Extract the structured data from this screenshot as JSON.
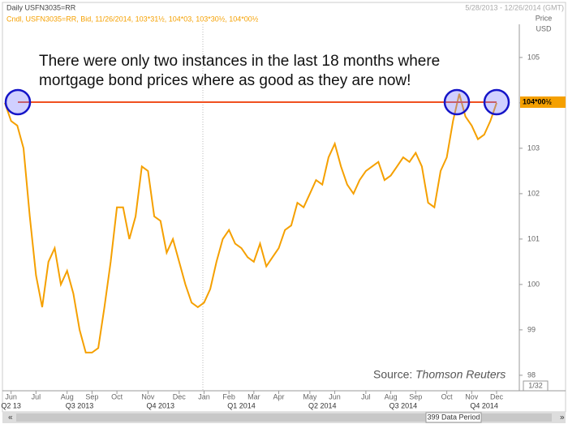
{
  "chart_data": {
    "type": "line",
    "title": "Daily USFN3035=RR",
    "date_range": "5/28/2013 - 12/26/2014 (GMT)",
    "legend_text": "Cndl, USFN3035=RR, Bid, 11/26/2014, 103*31½, 104*03, 103*30½, 104*00½",
    "y_axis_label": "Price",
    "y_axis_unit": "USD",
    "annotation": [
      "There were only two instances in the last 18 months where",
      "mortgage bond prices where as good as they are now!"
    ],
    "source": "Source:",
    "source_name": "Thomson Reuters",
    "tick_size": "1/32",
    "data_period": "399 Data Period",
    "color": "#f5a000",
    "reference_line": {
      "value": 104.0156,
      "label": "104*00½",
      "color": "#f05020"
    },
    "ylim": [
      97.73,
      105.73
    ],
    "yticks": [
      98,
      99,
      100,
      101,
      102,
      103,
      104,
      105
    ],
    "categories": [
      null,
      "Jun",
      null,
      null,
      null,
      "Jul",
      null,
      null,
      null,
      null,
      "Aug",
      null,
      null,
      null,
      "Sep",
      null,
      null,
      null,
      "Oct",
      null,
      null,
      null,
      null,
      "Nov",
      null,
      null,
      null,
      null,
      "Dec",
      null,
      null,
      null,
      "Jan",
      null,
      null,
      null,
      "Feb",
      null,
      null,
      null,
      "Mar",
      null,
      null,
      null,
      "Apr",
      null,
      null,
      null,
      null,
      "May",
      null,
      null,
      null,
      "Jun",
      null,
      null,
      null,
      null,
      "Jul",
      null,
      null,
      null,
      "Aug",
      null,
      null,
      null,
      "Sep",
      null,
      null,
      null,
      null,
      "Oct",
      null,
      null,
      null,
      "Nov",
      null,
      null,
      null,
      "Dec"
    ],
    "quarter_categories": [
      null,
      "Q2 13",
      null,
      null,
      null,
      null,
      null,
      null,
      null,
      null,
      null,
      null,
      "Q3 2013",
      null,
      null,
      null,
      null,
      null,
      null,
      null,
      null,
      null,
      null,
      null,
      null,
      "Q4 2013",
      null,
      null,
      null,
      null,
      null,
      null,
      null,
      null,
      null,
      null,
      null,
      null,
      "Q1 2014",
      null,
      null,
      null,
      null,
      null,
      null,
      null,
      null,
      null,
      null,
      null,
      null,
      "Q2 2014",
      null,
      null,
      null,
      null,
      null,
      null,
      null,
      null,
      null,
      null,
      null,
      null,
      "Q3 2014",
      null,
      null,
      null,
      null,
      null,
      null,
      null,
      null,
      null,
      null,
      null,
      null,
      "Q4 2014",
      null,
      null
    ],
    "values": [
      104.0,
      103.6,
      103.5,
      103.0,
      101.5,
      100.2,
      99.5,
      100.5,
      100.8,
      100.0,
      100.3,
      99.8,
      99.0,
      98.5,
      98.5,
      98.6,
      99.5,
      100.5,
      101.7,
      101.7,
      101.0,
      101.5,
      102.6,
      102.5,
      101.5,
      101.4,
      100.7,
      101.0,
      100.5,
      100.0,
      99.6,
      99.5,
      99.6,
      99.9,
      100.5,
      101.0,
      101.2,
      100.9,
      100.8,
      100.6,
      100.5,
      100.9,
      100.4,
      100.6,
      100.8,
      101.2,
      101.3,
      101.8,
      101.7,
      102.0,
      102.3,
      102.2,
      102.8,
      103.1,
      102.6,
      102.2,
      102.0,
      102.3,
      102.5,
      102.6,
      102.7,
      102.3,
      102.4,
      102.6,
      102.8,
      102.7,
      102.9,
      102.6,
      101.8,
      101.7,
      102.5,
      102.8,
      103.6,
      104.2,
      103.7,
      103.5,
      103.2,
      103.3,
      103.6,
      104.0
    ]
  }
}
